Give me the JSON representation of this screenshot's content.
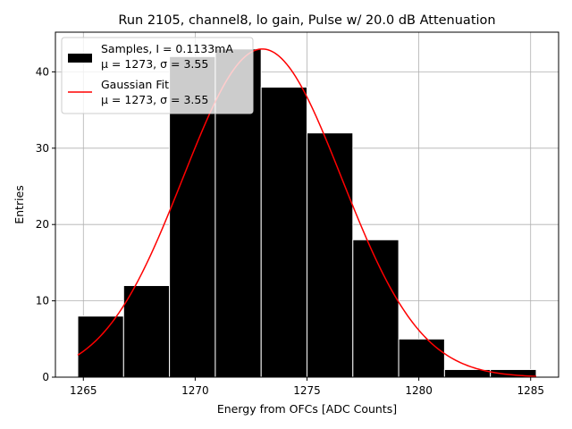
{
  "chart_data": {
    "type": "bar",
    "title": "Run 2105, channel8, lo gain, Pulse w/ 20.0 dB Attenuation",
    "xlabel": "Energy from OFCs [ADC Counts]",
    "ylabel": "Entries",
    "xlim": [
      1263.75,
      1286.25
    ],
    "ylim": [
      0,
      45.2
    ],
    "xticks": [
      1265,
      1270,
      1275,
      1280,
      1285
    ],
    "yticks": [
      0,
      10,
      20,
      30,
      40
    ],
    "grid": true,
    "legend_position": "top-left",
    "histogram": {
      "name": "Samples, I = 0.1133mA",
      "stats": "μ = 1273, σ = 3.55",
      "color": "#000000",
      "edge_color": "#ffffff",
      "bin_edges": [
        1264.75,
        1266.8,
        1268.85,
        1270.9,
        1272.95,
        1275.0,
        1277.05,
        1279.1,
        1281.15,
        1283.2,
        1285.25
      ],
      "counts": [
        8,
        12,
        42,
        43,
        38,
        32,
        18,
        5,
        1,
        1
      ]
    },
    "fit": {
      "name": "Gaussian Fit",
      "stats": "μ = 1273, σ = 3.55",
      "color": "#ff0000",
      "mu": 1273.0,
      "sigma": 3.55,
      "amplitude": 43.0,
      "x_range": [
        1264.75,
        1285.25
      ]
    }
  }
}
